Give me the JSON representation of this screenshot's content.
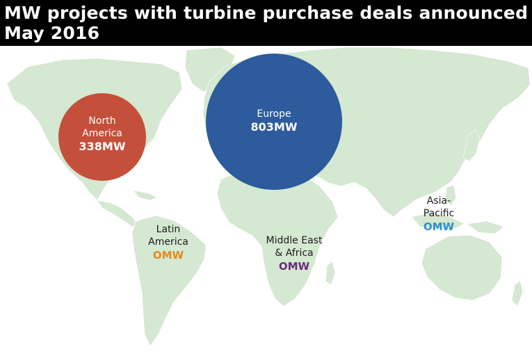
{
  "title": {
    "line1": "MW projects with turbine purchase deals announced",
    "line2": "May 2016"
  },
  "colors": {
    "land": "#d5e8d1",
    "ocean": "#ffffff",
    "north_america": "#c44f3a",
    "europe": "#2d5b9c",
    "latin_america_value": "#e08a1e",
    "middle_east_value": "#6a2c7a",
    "asia_pacific_value": "#2a8fcf"
  },
  "regions": {
    "north_america": {
      "label_line1": "North",
      "label_line2": "America",
      "value": "338MW",
      "mw": 338
    },
    "europe": {
      "label": "Europe",
      "value": "803MW",
      "mw": 803
    },
    "latin_america": {
      "label_line1": "Latin",
      "label_line2": "America",
      "value": "OMW",
      "mw": 0
    },
    "middle_east_africa": {
      "label_line1": "Middle East",
      "label_line2": "& Africa",
      "value": "OMW",
      "mw": 0
    },
    "asia_pacific": {
      "label_line1": "Asia-",
      "label_line2": "Pacific",
      "value": "OMW",
      "mw": 0
    }
  }
}
